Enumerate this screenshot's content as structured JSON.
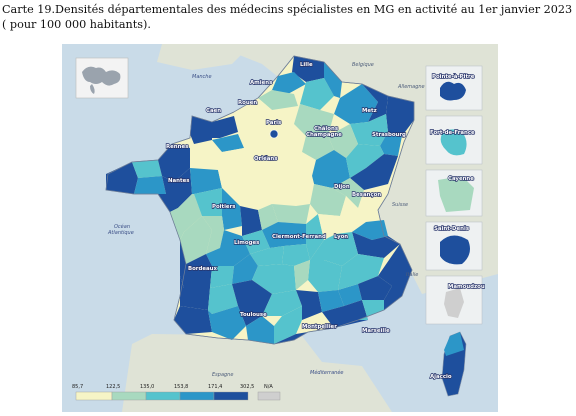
{
  "caption": "Carte 19.Densités départementales des médecins spécialistes en MG en activité au 1er janvier 2023 ( pour 100 000 habitants).",
  "legend": {
    "breaks": [
      "85,7",
      "122,5",
      "135,0",
      "153,8",
      "171,4",
      "302,5"
    ],
    "na_label": "N/A",
    "colors": [
      "#f6f4c6",
      "#a8d9bf",
      "#55c3cd",
      "#2c96c8",
      "#1e4f9d",
      "#cfcfcf"
    ]
  },
  "cities": {
    "lille": "Lille",
    "amiens": "Amiens",
    "rouen": "Rouen",
    "caen": "Caen",
    "paris": "Paris",
    "metz": "Metz",
    "chalons": "Châlons\nChampagne",
    "strasbourg": "Strasbourg",
    "rennes": "Rennes",
    "orleans": "Orléans",
    "nantes": "Nantes",
    "dijon": "Dijon",
    "besancon": "Besançon",
    "poitiers": "Poitiers",
    "clermont": "Clermont-Ferrand",
    "lyon": "Lyon",
    "limoges": "Limoges",
    "bordeaux": "Bordeaux",
    "toulouse": "Toulouse",
    "montpellier": "Montpellier",
    "marseille": "Marseille",
    "ajaccio": "Ajaccio"
  },
  "seas": {
    "manche": "Manche",
    "ocean": "Océan\nAtlantique",
    "mediterranee": "Méditerranée"
  },
  "countries": {
    "belgique": "Belgique",
    "allemagne": "Allemagne",
    "suisse": "Suisse",
    "italie": "Italie",
    "espagne": "Espagne"
  },
  "overseas": [
    {
      "label": "Pointe-à-Pitre",
      "color": "#1e4f9d"
    },
    {
      "label": "Fort-de-France",
      "color": "#55c3cd"
    },
    {
      "label": "Cayenne",
      "color": "#a8d9bf"
    },
    {
      "label": "Saint-Denis",
      "color": "#1e4f9d"
    },
    {
      "label": "Mamoudzou",
      "color": "#cfcfcf"
    }
  ]
}
